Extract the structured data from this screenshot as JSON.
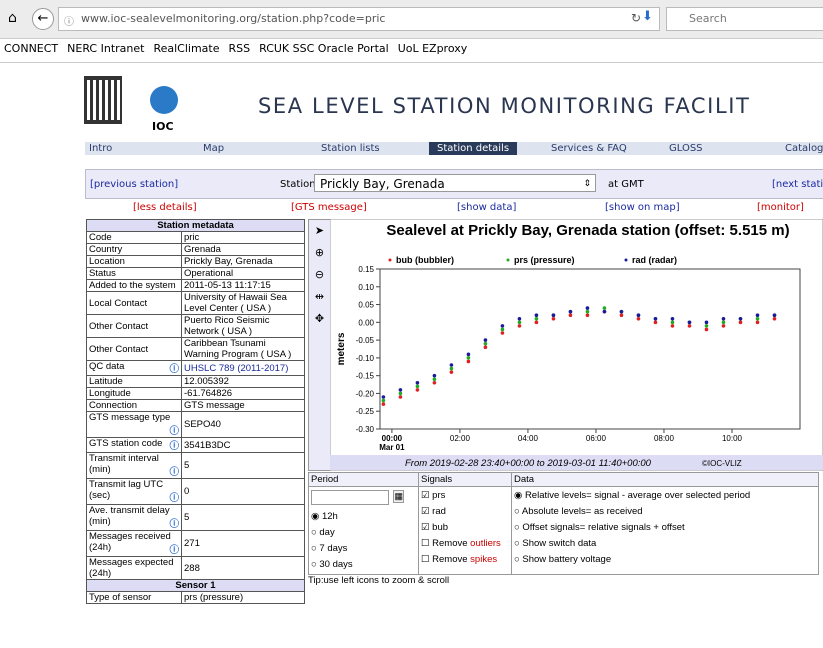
{
  "browser": {
    "url": "www.ioc-sealevelmonitoring.org/station.php?code=pric",
    "search": "Search",
    "bookmarks": [
      "CONNECT",
      "NERC Intranet",
      "RealClimate",
      "RSS",
      "RCUK SSC Oracle Portal",
      "UoL EZproxy"
    ]
  },
  "header": {
    "logo_text": "IOC",
    "title": "SEA LEVEL STATION MONITORING FACILIT"
  },
  "nav": [
    "Intro",
    "Map",
    "Station lists",
    "Station details",
    "Services & FAQ",
    "GLOSS",
    "Catalog"
  ],
  "station_bar": {
    "previous": "[previous station]",
    "label": "Station",
    "selected": "Prickly Bay, Grenada",
    "time_note": "at GMT",
    "next": "[next station"
  },
  "links": [
    "[less details]",
    "[GTS message]",
    "[show data]",
    "[show on map]",
    "[monitor]"
  ],
  "metadata": {
    "title": "Station metadata",
    "rows": [
      [
        "Code",
        "pric"
      ],
      [
        "Country",
        "Grenada"
      ],
      [
        "Location",
        "Prickly Bay, Grenada"
      ],
      [
        "Status",
        "Operational"
      ],
      [
        "Added to the system",
        "2011-05-13 11:17:15"
      ],
      [
        "Local Contact",
        "University of Hawaii Sea Level Center ( USA )"
      ],
      [
        "Other Contact",
        "Puerto Rico Seismic Network ( USA )"
      ],
      [
        "Other Contact",
        "Caribbean Tsunami Warning Program ( USA )"
      ],
      [
        "QC data",
        "UHSLC 789 (2011-2017)"
      ],
      [
        "Latitude",
        "12.005392"
      ],
      [
        "Longitude",
        "-61.764826"
      ],
      [
        "Connection",
        "GTS message"
      ],
      [
        "GTS message type",
        "SEPO40"
      ],
      [
        "GTS station code",
        "3541B3DC"
      ],
      [
        "Transmit interval (min)",
        "5"
      ],
      [
        "Transmit lag UTC (sec)",
        "0"
      ],
      [
        "Ave. transmit delay (min)",
        "5"
      ],
      [
        "Messages received (24h)",
        "271"
      ],
      [
        "Messages expected (24h)",
        "288"
      ]
    ],
    "info_rows": [
      8,
      12,
      13,
      14,
      15,
      16,
      17
    ],
    "sensor_title": "Sensor 1",
    "sensor_rows": [
      [
        "Type of sensor",
        "prs (pressure)"
      ]
    ]
  },
  "chart_data": {
    "type": "scatter",
    "title": "Sealevel at Prickly Bay, Grenada station (offset: 5.515 m)",
    "y_label": "meters",
    "x_date_label": "Mar 01",
    "x": [
      -0.25,
      0.25,
      0.75,
      1.25,
      1.75,
      2.25,
      2.75,
      3.25,
      3.75,
      4.25,
      4.75,
      5.25,
      5.75,
      6.25,
      6.75,
      7.25,
      7.75,
      8.25,
      8.75,
      9.25,
      9.75,
      10.25,
      10.75,
      11.25
    ],
    "series": [
      {
        "name": "bub (bubbler)",
        "color": "#e02020",
        "values": [
          -0.23,
          -0.21,
          -0.19,
          -0.17,
          -0.14,
          -0.11,
          -0.07,
          -0.03,
          -0.01,
          0.0,
          0.01,
          0.02,
          0.02,
          0.03,
          0.02,
          0.01,
          0.0,
          -0.01,
          -0.01,
          -0.02,
          -0.01,
          0.0,
          0.0,
          0.01
        ]
      },
      {
        "name": "prs (pressure)",
        "color": "#22aa22",
        "values": [
          -0.22,
          -0.2,
          -0.18,
          -0.16,
          -0.13,
          -0.1,
          -0.06,
          -0.02,
          0.0,
          0.01,
          0.02,
          0.03,
          0.03,
          0.04,
          0.03,
          0.02,
          0.01,
          0.0,
          0.0,
          -0.01,
          0.0,
          0.01,
          0.01,
          0.02
        ]
      },
      {
        "name": "rad (radar)",
        "color": "#1a1a9a",
        "values": [
          -0.21,
          -0.19,
          -0.17,
          -0.15,
          -0.12,
          -0.09,
          -0.05,
          -0.01,
          0.01,
          0.02,
          0.02,
          0.03,
          0.04,
          0.03,
          0.03,
          0.02,
          0.01,
          0.01,
          0.0,
          0.0,
          0.01,
          0.01,
          0.02,
          0.02
        ]
      }
    ],
    "xlim": [
      -0.35,
      12.0
    ],
    "xticks": [
      {
        "value": 0,
        "label": "00:00"
      },
      {
        "value": 2,
        "label": "02:00"
      },
      {
        "value": 4,
        "label": "04:00"
      },
      {
        "value": 6,
        "label": "06:00"
      },
      {
        "value": 8,
        "label": "08:00"
      },
      {
        "value": 10,
        "label": "10:00"
      }
    ],
    "ylim": [
      -0.3,
      0.15
    ],
    "yticks": [
      {
        "value": 0.15,
        "label": "0.15"
      },
      {
        "value": 0.1,
        "label": "0.10"
      },
      {
        "value": 0.05,
        "label": "0.05"
      },
      {
        "value": 0,
        "label": "0.00"
      },
      {
        "value": -0.05,
        "label": "-0.05"
      },
      {
        "value": -0.1,
        "label": "-0.10"
      },
      {
        "value": -0.15,
        "label": "-0.15"
      },
      {
        "value": -0.2,
        "label": "-0.20"
      },
      {
        "value": -0.25,
        "label": "-0.25"
      },
      {
        "value": -0.3,
        "label": "-0.30"
      }
    ],
    "footer": "From 2019-02-28 23:40+00:00 to 2019-03-01 11:40+00:00",
    "credit": "©IOC-VLIZ"
  },
  "controls": {
    "period_title": "Period",
    "signals_title": "Signals",
    "data_title": "Data",
    "periods": [
      "12h",
      "day",
      "7 days",
      "30 days"
    ],
    "signals": [
      "prs",
      "rad",
      "bub"
    ],
    "remove": [
      [
        "Remove",
        "outliers"
      ],
      [
        "Remove",
        "spikes"
      ]
    ],
    "data_options": [
      "Relative levels= signal - average over selected period",
      "Absolute levels= as received",
      "Offset signals= relative signals + offset",
      "Show switch data",
      "Show battery voltage"
    ],
    "tip": "Tip:use left icons to zoom & scroll"
  }
}
